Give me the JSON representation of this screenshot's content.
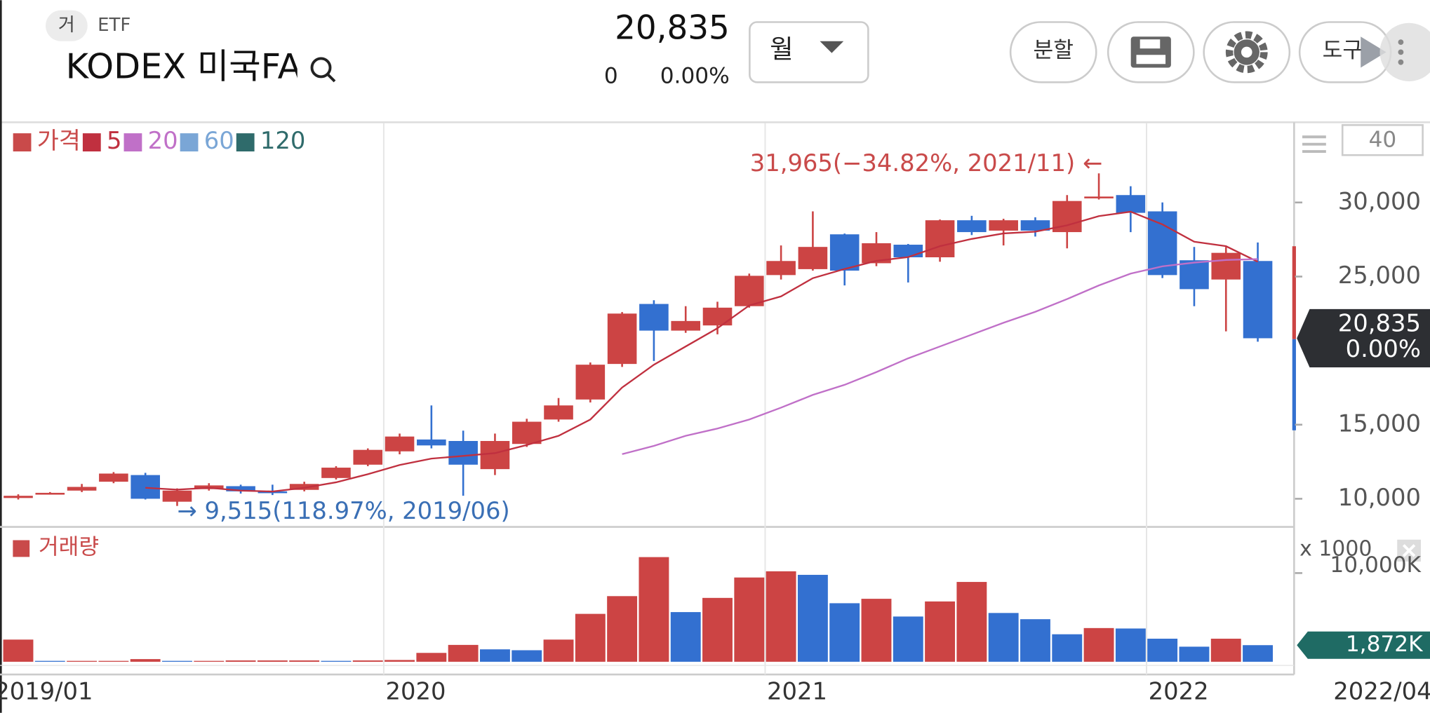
{
  "header": {
    "badge": "거",
    "market": "ETF",
    "name": "KODEX 미국FA",
    "price": "20,835",
    "change": "0",
    "change_pct": "0.00%",
    "period": "월",
    "split_button": "분할",
    "tools_button": "도구",
    "period_count": "40"
  },
  "chart_data": {
    "type": "candlestick",
    "price_name": "가격",
    "price_color": "#c94a4a",
    "categories": [
      "2019/01",
      null,
      null,
      null,
      null,
      null,
      null,
      null,
      null,
      null,
      null,
      null,
      "2020",
      null,
      null,
      null,
      null,
      null,
      null,
      null,
      null,
      null,
      null,
      null,
      "2021",
      null,
      null,
      null,
      null,
      null,
      null,
      null,
      null,
      null,
      null,
      null,
      "2022",
      null,
      null,
      null
    ],
    "cursor_label": "2022/04",
    "up_color": "#cc4444",
    "down_color": "#3370d0",
    "ohlc": {
      "open": [
        10050,
        10350,
        10550,
        11150,
        11600,
        9800,
        10650,
        10850,
        10500,
        10600,
        11400,
        12300,
        13200,
        14000,
        13900,
        12000,
        13700,
        15350,
        16700,
        19100,
        23150,
        21350,
        21700,
        23000,
        25100,
        25500,
        27850,
        25900,
        27150,
        26300,
        28800,
        28100,
        28800,
        28000,
        30300,
        30500,
        29400,
        26100,
        24800,
        26050
      ],
      "high": [
        10300,
        10450,
        11000,
        11800,
        11750,
        10700,
        11050,
        10950,
        10950,
        11150,
        12200,
        13400,
        14400,
        16300,
        14600,
        14400,
        15400,
        16800,
        19200,
        22600,
        23400,
        23000,
        23300,
        25200,
        27100,
        29400,
        27900,
        28000,
        27200,
        28850,
        29100,
        28900,
        29000,
        30500,
        31965,
        31100,
        30000,
        27000,
        27000,
        27300
      ],
      "low": [
        9950,
        10300,
        10450,
        11050,
        9950,
        9515,
        10550,
        10350,
        10250,
        10500,
        11300,
        12200,
        13000,
        13400,
        10200,
        11600,
        13500,
        15200,
        16500,
        18900,
        19300,
        21200,
        21100,
        22900,
        24800,
        25400,
        24400,
        25700,
        24600,
        26000,
        27800,
        27100,
        27700,
        26900,
        30200,
        28000,
        24900,
        23000,
        21300,
        20600
      ],
      "close": [
        10200,
        10400,
        10800,
        11700,
        10000,
        10550,
        10900,
        10500,
        10450,
        11000,
        12100,
        13300,
        14200,
        13600,
        12300,
        13900,
        15200,
        16300,
        19050,
        22500,
        21350,
        22000,
        22900,
        25050,
        26050,
        27000,
        25400,
        27250,
        26300,
        28800,
        28000,
        28800,
        28100,
        30100,
        30400,
        29300,
        25100,
        24150,
        26600,
        20835
      ]
    },
    "series": [
      {
        "name": "5",
        "color": "#c0303f",
        "values": [
          null,
          null,
          null,
          null,
          10740,
          10615,
          10740,
          10550,
          10490,
          10740,
          11110,
          11660,
          12280,
          12710,
          12890,
          13080,
          13630,
          14250,
          15350,
          17510,
          19050,
          20280,
          21510,
          23050,
          23660,
          24890,
          25510,
          26060,
          26310,
          27050,
          27540,
          27910,
          28030,
          28460,
          29080,
          29380,
          28520,
          27350,
          27050,
          26000
        ]
      },
      {
        "name": "20",
        "color": "#c070c8",
        "values": [
          null,
          null,
          null,
          null,
          null,
          null,
          null,
          null,
          null,
          null,
          null,
          null,
          null,
          null,
          null,
          null,
          null,
          null,
          null,
          13010,
          13570,
          14250,
          14740,
          15350,
          16150,
          17010,
          17690,
          18550,
          19480,
          20280,
          21080,
          21880,
          22620,
          23480,
          24400,
          25200,
          25690,
          25940,
          26120,
          26180
        ]
      },
      {
        "name": "60",
        "color": "#7aa6d6"
      },
      {
        "name": "120",
        "color": "#2f6b6b"
      }
    ],
    "ylim": [
      8100,
      35350
    ],
    "yticks": [
      {
        "value": 10000,
        "label": "10,000"
      },
      {
        "value": 15000,
        "label": "15,000"
      },
      {
        "value": 25000,
        "label": "25,000"
      },
      {
        "value": 30000,
        "label": "30,000"
      }
    ],
    "annotations": {
      "high": "31,965(−34.82%, 2021/11) ←",
      "low": "→ 9,515(118.97%, 2019/06)"
    },
    "volume": {
      "title": "거래량",
      "unit_label": "x 1000",
      "values": [
        2500,
        100,
        100,
        100,
        300,
        100,
        100,
        150,
        150,
        150,
        100,
        150,
        200,
        1000,
        1900,
        1400,
        1300,
        2500,
        5400,
        7400,
        11800,
        5600,
        7200,
        9500,
        10200,
        9800,
        6600,
        7100,
        5100,
        6800,
        9000,
        5500,
        4800,
        3100,
        3800,
        3750,
        2600,
        1700,
        2600,
        1872
      ],
      "last_value_label": "1,872K",
      "ylim": [
        0,
        15000
      ],
      "yticks": [
        {
          "value": 10000,
          "label": "10,000K"
        }
      ]
    }
  }
}
